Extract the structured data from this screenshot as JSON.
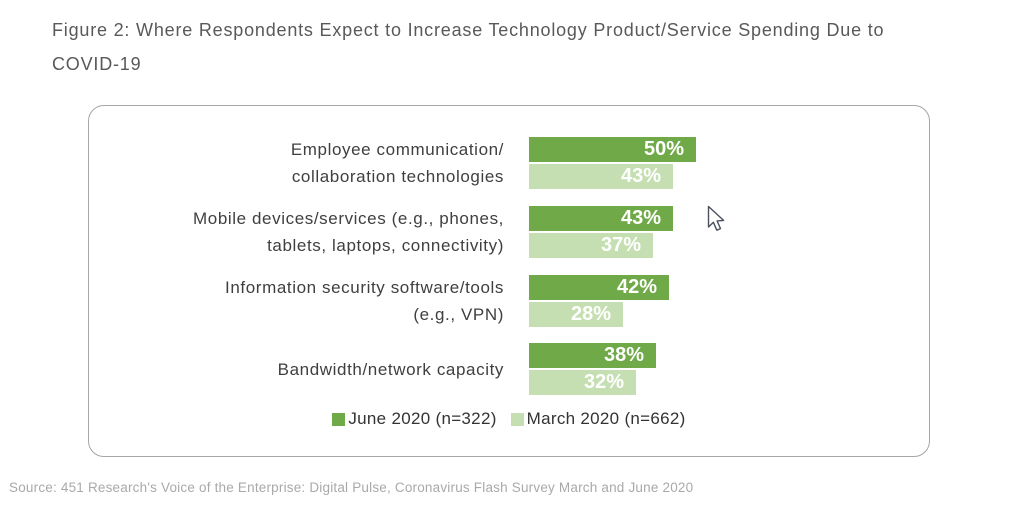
{
  "figure": {
    "title_line1": "Figure 2: Where Respondents Expect to Increase Technology Product/Service Spending Due to",
    "title_line2": "COVID-19"
  },
  "source": "Source: 451 Research's Voice of the Enterprise: Digital Pulse, Coronavirus Flash Survey March and June 2020",
  "colors": {
    "june": "#70aa48",
    "march": "#c5dfb3",
    "title_text": "#595959",
    "category_text": "#3f3f3f",
    "legend_text": "#333333",
    "source_text": "#a9a9a9",
    "panel_border": "#a6a6a6",
    "bar_value_text": "#ffffff"
  },
  "chart_data": {
    "type": "bar",
    "orientation": "horizontal",
    "title": "Figure 2: Where Respondents Expect to Increase Technology Product/Service Spending Due to COVID-19",
    "categories": [
      "Employee communication/collaboration technologies",
      "Mobile devices/services (e.g., phones, tablets, laptops, connectivity)",
      "Information security software/tools (e.g., VPN)",
      "Bandwidth/network capacity"
    ],
    "category_label_lines": [
      [
        "Employee communication/",
        "collaboration technologies"
      ],
      [
        "Mobile devices/services (e.g., phones,",
        "tablets, laptops, connectivity)"
      ],
      [
        "Information security software/tools",
        "(e.g., VPN)"
      ],
      [
        "Bandwidth/network capacity"
      ]
    ],
    "series": [
      {
        "name": "June 2020 (n=322)",
        "color_key": "june",
        "values": [
          50,
          43,
          42,
          38
        ]
      },
      {
        "name": "March 2020 (n=662)",
        "color_key": "march",
        "values": [
          43,
          37,
          28,
          32
        ]
      }
    ],
    "value_suffix": "%",
    "xlim": [
      0,
      100
    ],
    "grid": false,
    "axes_visible": false,
    "value_labels": "inside-end",
    "legend_position": "bottom-center"
  }
}
